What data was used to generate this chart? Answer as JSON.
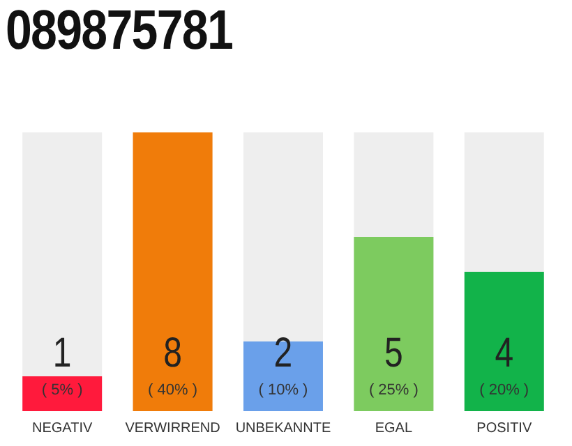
{
  "chart_data": {
    "type": "bar",
    "title": "089875781",
    "categories": [
      "NEGATIV",
      "VERWIRREND",
      "UNBEKANNTE",
      "EGAL",
      "POSITIV"
    ],
    "values": [
      1,
      8,
      2,
      5,
      4
    ],
    "colors": [
      "#ff1a3c",
      "#f07c0a",
      "#6aa0ea",
      "#7dcb5f",
      "#12b34a"
    ],
    "ylim": [
      0,
      8
    ],
    "tick_labels": "x",
    "data_labels": true,
    "grid": false,
    "legend": false,
    "annotations": [
      "( 5% )",
      "( 40% )",
      "( 10% )",
      "( 25% )",
      "( 20% )"
    ]
  }
}
